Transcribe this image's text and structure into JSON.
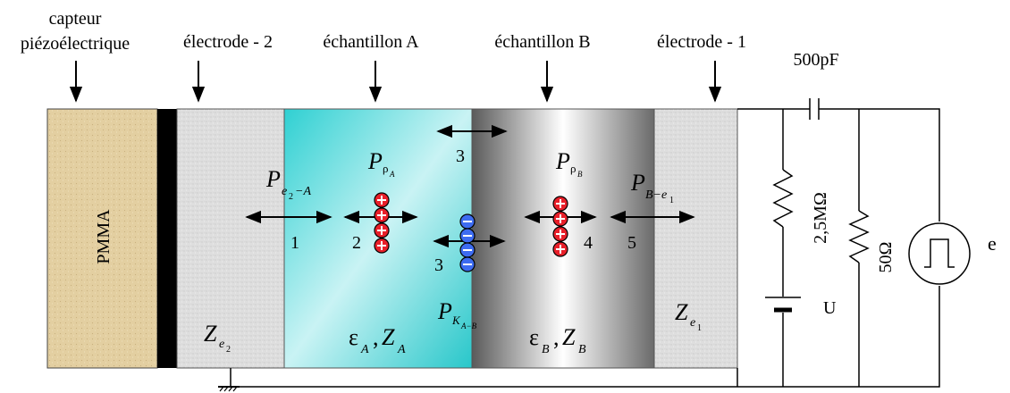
{
  "labels": {
    "sensor_line1": "capteur",
    "sensor_line2": "piézoélectrique",
    "electrode2": "électrode - 2",
    "sampleA": "échantillon A",
    "sampleB": "échantillon B",
    "electrode1": "électrode - 1",
    "pmma": "PMMA",
    "cap": "500pF",
    "r_big": "2,5MΩ",
    "r_small": "50Ω",
    "source": "e",
    "battery": "U"
  },
  "arrow_numbers": [
    "1",
    "2",
    "3",
    "3",
    "4",
    "5"
  ],
  "math": {
    "p": "P",
    "z": "Z",
    "eps": "ε",
    "comma": ",",
    "rho": "ρ",
    "sub_e2": "e",
    "sub_e2_idx": "2",
    "sub_A": "A",
    "sub_B": "B",
    "sub_e1_idx": "1",
    "pe2A_sub": "e",
    "pe2A_sub_idx": "2",
    "pe2A_sub_rest": "−A",
    "pBe1_sub": "B−e",
    "pBe1_sub_idx": "1",
    "pK_sub": "K",
    "pK_sub_sub": "A−B"
  },
  "colors": {
    "pmma": "#e6d3a8",
    "electrode": "#dcdcdc",
    "sampleA_light": "#e7fbfb",
    "sampleA_dark": "#2fcdd0",
    "sampleB_dark": "#5a5a5a",
    "sampleB_light": "#ffffff",
    "positive_charge": "#e8202a",
    "negative_charge": "#3d6cf0"
  }
}
